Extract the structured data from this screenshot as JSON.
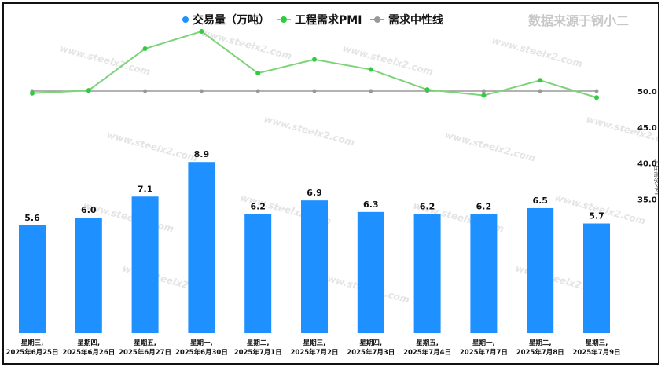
{
  "source_note": "数据来源于钢小二",
  "watermark": "www.steelx2.com",
  "colors": {
    "bar": "#1e90ff",
    "pmi": "#7ed37a",
    "neutral": "#999999",
    "legend_pmi_dot": "#2ecc40"
  },
  "chart_data": {
    "type": "bar",
    "categories": [
      [
        "星期三,",
        "2025年6月25日"
      ],
      [
        "星期四,",
        "2025年6月26日"
      ],
      [
        "星期五,",
        "2025年6月27日"
      ],
      [
        "星期一,",
        "2025年6月30日"
      ],
      [
        "星期二,",
        "2025年7月1日"
      ],
      [
        "星期三,",
        "2025年7月2日"
      ],
      [
        "星期四,",
        "2025年7月3日"
      ],
      [
        "星期五,",
        "2025年7月4日"
      ],
      [
        "星期一,",
        "2025年7月7日"
      ],
      [
        "星期二,",
        "2025年7月8日"
      ],
      [
        "星期三,",
        "2025年7月9日"
      ]
    ],
    "series": [
      {
        "name": "交易量（万吨）",
        "type": "bar",
        "values": [
          5.6,
          6.0,
          7.1,
          8.9,
          6.2,
          6.9,
          6.3,
          6.2,
          6.2,
          6.5,
          5.7
        ],
        "labels": [
          "5.6",
          "6.0",
          "7.1",
          "8.9",
          "6.2",
          "6.9",
          "6.3",
          "6.2",
          "6.2",
          "6.5",
          "5.7"
        ]
      },
      {
        "name": "工程需求PMI",
        "type": "line",
        "axis": "right",
        "values": [
          49.7,
          50.1,
          55.9,
          58.3,
          52.5,
          54.4,
          53.0,
          50.2,
          49.4,
          51.5,
          49.1
        ]
      },
      {
        "name": "需求中性线",
        "type": "line",
        "axis": "right",
        "values": [
          50,
          50,
          50,
          50,
          50,
          50,
          50,
          50,
          50,
          50,
          50
        ]
      }
    ],
    "y_right": {
      "label": "工程需求PMI",
      "ticks": [
        "35.0",
        "40.0",
        "45.0",
        "50.0"
      ],
      "tick_values": [
        35,
        40,
        45,
        50
      ]
    },
    "legend_position": "top-center",
    "grid": false
  }
}
